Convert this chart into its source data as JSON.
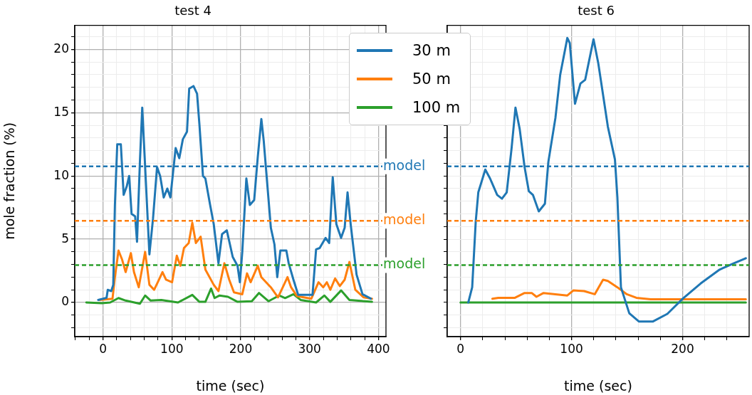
{
  "chart_data": [
    {
      "type": "line",
      "title": "test 4",
      "xlabel": "time (sec)",
      "ylabel": "mole fraction (%)",
      "xlim": [
        -41,
        411
      ],
      "ylim": [
        -2.7,
        21.9
      ],
      "xticks": [
        {
          "value": -40,
          "label": null
        },
        {
          "value": -20,
          "label": null
        },
        0,
        {
          "value": 20,
          "label": null
        },
        {
          "value": 40,
          "label": null
        },
        {
          "value": 60,
          "label": null
        },
        {
          "value": 80,
          "label": null
        },
        100,
        {
          "value": 120,
          "label": null
        },
        {
          "value": 140,
          "label": null
        },
        {
          "value": 160,
          "label": null
        },
        {
          "value": 180,
          "label": null
        },
        200,
        {
          "value": 220,
          "label": null
        },
        {
          "value": 240,
          "label": null
        },
        {
          "value": 260,
          "label": null
        },
        {
          "value": 280,
          "label": null
        },
        300,
        {
          "value": 320,
          "label": null
        },
        {
          "value": 340,
          "label": null
        },
        {
          "value": 360,
          "label": null
        },
        {
          "value": 380,
          "label": null
        },
        400
      ],
      "yticks": [
        {
          "value": -2,
          "label": null
        },
        {
          "value": -1,
          "label": null
        },
        0,
        {
          "value": 1,
          "label": null
        },
        {
          "value": 2,
          "label": null
        },
        {
          "value": 3,
          "label": null
        },
        {
          "value": 4,
          "label": null
        },
        5,
        {
          "value": 6,
          "label": null
        },
        {
          "value": 7,
          "label": null
        },
        {
          "value": 8,
          "label": null
        },
        {
          "value": 9,
          "label": null
        },
        10,
        {
          "value": 11,
          "label": null
        },
        {
          "value": 12,
          "label": null
        },
        {
          "value": 13,
          "label": null
        },
        {
          "value": 14,
          "label": null
        },
        15,
        {
          "value": 16,
          "label": null
        },
        {
          "value": 17,
          "label": null
        },
        {
          "value": 18,
          "label": null
        },
        {
          "value": 19,
          "label": null
        },
        20,
        {
          "value": 21,
          "label": null
        }
      ],
      "grid": true,
      "legend": "top right",
      "line_style": "solid",
      "series": [
        {
          "name": "30 m",
          "color": "#1f77b4",
          "x": [
            -7,
            5.2,
            6.9,
            12,
            14.9,
            17.3,
            20.7,
            25.9,
            30,
            34.6,
            38,
            41.5,
            46.7,
            49.4,
            53.6,
            57,
            60.5,
            67.4,
            72.6,
            78.5,
            83,
            88.2,
            93.4,
            97.9,
            105.5,
            110.8,
            116,
            122,
            125.2,
            131.4,
            136.6,
            140,
            145.2,
            148.7,
            155.6,
            160.8,
            167.7,
            172.9,
            179.8,
            188.4,
            195.4,
            198.8,
            202.3,
            208.2,
            213.3,
            219.6,
            224.8,
            230,
            233.4,
            243.8,
            249,
            253.1,
            257.6,
            266.3,
            269.7,
            276.6,
            283.5,
            304.3,
            309.5,
            314.7,
            323.3,
            328.5,
            333.7,
            338.9,
            345.8,
            351,
            355.2,
            359.7,
            368.3,
            376.9,
            389
          ],
          "values": [
            0.2,
            0.37,
            1.0,
            0.9,
            1.4,
            7.7,
            12.5,
            12.5,
            8.5,
            9.2,
            10.0,
            7.0,
            6.8,
            4.8,
            11.1,
            15.4,
            11.5,
            3.8,
            6.6,
            10.7,
            10.0,
            8.3,
            9.0,
            8.3,
            12.2,
            11.4,
            12.9,
            13.5,
            16.9,
            17.1,
            16.5,
            14.1,
            10.0,
            9.8,
            7.7,
            6.2,
            3.1,
            5.4,
            5.7,
            3.6,
            2.9,
            1.6,
            4.0,
            9.8,
            7.7,
            8.1,
            11.5,
            14.5,
            12.8,
            5.9,
            4.6,
            2.0,
            4.1,
            4.1,
            3.1,
            1.8,
            0.6,
            0.6,
            4.2,
            4.3,
            5.1,
            4.7,
            9.9,
            6.2,
            5.1,
            5.9,
            8.7,
            6.2,
            2.2,
            0.65,
            0.3
          ]
        },
        {
          "name": "50 m",
          "color": "#ff7f0e",
          "x": [
            -5.2,
            13.8,
            17.3,
            22.5,
            27.7,
            32.9,
            40.5,
            45,
            51.9,
            61.2,
            67.4,
            74.3,
            79.5,
            86.4,
            91.6,
            100.3,
            107.2,
            112.4,
            117.6,
            124.5,
            129.7,
            134.9,
            141.8,
            148.7,
            160.8,
            167.7,
            176.3,
            183.3,
            190.2,
            202.3,
            209.2,
            214.4,
            224.8,
            230,
            243.8,
            254.2,
            268,
            273.2,
            281.8,
            302.6,
            313,
            319.9,
            325.1,
            330.2,
            337.1,
            344,
            351,
            357.9,
            366.5,
            378.6,
            390.7
          ],
          "values": [
            0.2,
            0.3,
            2.0,
            4.1,
            3.4,
            2.4,
            3.9,
            2.4,
            1.2,
            4.0,
            1.4,
            1.0,
            1.6,
            2.4,
            1.8,
            1.6,
            3.7,
            2.9,
            4.3,
            4.7,
            6.3,
            4.7,
            5.2,
            2.6,
            1.4,
            0.9,
            3.1,
            1.8,
            0.8,
            0.65,
            2.3,
            1.6,
            2.9,
            2.0,
            1.2,
            0.4,
            2.0,
            1.2,
            0.5,
            0.3,
            1.6,
            1.2,
            1.6,
            1.0,
            1.9,
            1.3,
            1.8,
            3.2,
            1.0,
            0.4,
            0.3
          ]
        },
        {
          "name": "100 m",
          "color": "#2ca02c",
          "x": [
            -24.2,
            -1.7,
            10.4,
            22.5,
            32.9,
            53.6,
            61.2,
            69.2,
            84.7,
            108.9,
            129.7,
            140,
            148.7,
            157,
            162.1,
            169.4,
            181.5,
            195.4,
            216.1,
            226.5,
            240.3,
            255.9,
            264.5,
            276.6,
            287,
            309.5,
            321.6,
            330.2,
            345.8,
            357.9,
            390.7
          ],
          "values": [
            0,
            -0.05,
            0,
            0.35,
            0.15,
            -0.1,
            0.55,
            0.15,
            0.2,
            0,
            0.6,
            0.05,
            0.05,
            1.1,
            0.35,
            0.55,
            0.45,
            0.05,
            0.1,
            0.75,
            0.1,
            0.55,
            0.35,
            0.65,
            0.2,
            0,
            0.55,
            0.05,
            0.95,
            0.2,
            0.05
          ]
        }
      ],
      "ref_lines": [
        {
          "axis": "y",
          "value": 10.75,
          "label": "model",
          "color": "#1f77b4",
          "line_style": "dashed"
        },
        {
          "axis": "y",
          "value": 6.45,
          "label": "model",
          "color": "#ff7f0e",
          "line_style": "dashed"
        },
        {
          "axis": "y",
          "value": 2.95,
          "label": "model",
          "color": "#2ca02c",
          "line_style": "dashed"
        }
      ]
    },
    {
      "type": "line",
      "title": "test 6",
      "xlabel": "time (sec)",
      "xlim": [
        -12,
        260
      ],
      "ylim": [
        -2.7,
        21.9
      ],
      "tick_labels": "x",
      "xticks": [
        0,
        {
          "value": 20,
          "label": null
        },
        {
          "value": 40,
          "label": null
        },
        {
          "value": 60,
          "label": null
        },
        {
          "value": 80,
          "label": null
        },
        100,
        {
          "value": 120,
          "label": null
        },
        {
          "value": 140,
          "label": null
        },
        {
          "value": 160,
          "label": null
        },
        {
          "value": 180,
          "label": null
        },
        200,
        {
          "value": 220,
          "label": null
        },
        {
          "value": 240,
          "label": null
        }
      ],
      "yticks": [
        {
          "value": -2,
          "label": null
        },
        {
          "value": -1,
          "label": null
        },
        {
          "value": 0,
          "label": null
        },
        {
          "value": 1,
          "label": null
        },
        {
          "value": 2,
          "label": null
        },
        {
          "value": 3,
          "label": null
        },
        {
          "value": 4,
          "label": null
        },
        {
          "value": 5,
          "label": null
        },
        {
          "value": 6,
          "label": null
        },
        {
          "value": 7,
          "label": null
        },
        {
          "value": 8,
          "label": null
        },
        {
          "value": 9,
          "label": null
        },
        {
          "value": 10,
          "label": null
        },
        {
          "value": 11,
          "label": null
        },
        {
          "value": 12,
          "label": null
        },
        {
          "value": 13,
          "label": null
        },
        {
          "value": 14,
          "label": null
        },
        {
          "value": 15,
          "label": null
        },
        {
          "value": 16,
          "label": null
        },
        {
          "value": 17,
          "label": null
        },
        {
          "value": 18,
          "label": null
        },
        {
          "value": 19,
          "label": null
        },
        {
          "value": 20,
          "label": null
        },
        {
          "value": 21,
          "label": null
        }
      ],
      "grid": true,
      "line_style": "solid",
      "series": [
        {
          "color": "#1f77b4",
          "x": [
            7,
            10.5,
            13.7,
            16,
            22.3,
            26.6,
            33,
            37.3,
            41.6,
            46,
            49.5,
            53.3,
            57.7,
            61.5,
            65.2,
            70.5,
            76,
            79.1,
            85.5,
            89.8,
            96.2,
            98.4,
            103.1,
            108,
            112.3,
            119.8,
            124.1,
            132.7,
            139.1,
            141.3,
            144.5,
            152,
            160.6,
            173.4,
            186.3,
            200.2,
            216.3,
            233.4,
            246.3,
            257
          ],
          "values": [
            0,
            1.2,
            6.4,
            8.7,
            10.5,
            9.8,
            8.5,
            8.2,
            8.7,
            12.2,
            15.4,
            13.7,
            10.7,
            8.8,
            8.5,
            7.2,
            7.8,
            11.1,
            14.6,
            18.0,
            20.9,
            20.5,
            15.7,
            17.3,
            17.6,
            20.8,
            18.9,
            13.9,
            11.3,
            8.3,
            1.2,
            -0.85,
            -1.5,
            -1.5,
            -0.9,
            0.3,
            1.5,
            2.6,
            3.1,
            3.5
          ]
        },
        {
          "color": "#ff7f0e",
          "x": [
            28.7,
            34,
            49,
            57.7,
            64.1,
            68.4,
            74.8,
            85.5,
            96.2,
            101.6,
            111.3,
            120.9,
            128.4,
            132.7,
            141.3,
            149.8,
            158.4,
            171.3,
            257
          ],
          "values": [
            0.3,
            0.37,
            0.37,
            0.75,
            0.75,
            0.45,
            0.75,
            0.65,
            0.55,
            0.95,
            0.9,
            0.65,
            1.8,
            1.7,
            1.2,
            0.65,
            0.37,
            0.25,
            0.25
          ]
        },
        {
          "color": "#2ca02c",
          "x": [
            0,
            100,
            200,
            257
          ],
          "values": [
            0,
            0,
            0,
            0
          ]
        }
      ],
      "ref_lines": [
        {
          "axis": "y",
          "value": 10.75,
          "color": "#1f77b4",
          "line_style": "dashed"
        },
        {
          "axis": "y",
          "value": 6.45,
          "color": "#ff7f0e",
          "line_style": "dashed"
        },
        {
          "axis": "y",
          "value": 2.95,
          "color": "#2ca02c",
          "line_style": "dashed"
        }
      ]
    }
  ]
}
